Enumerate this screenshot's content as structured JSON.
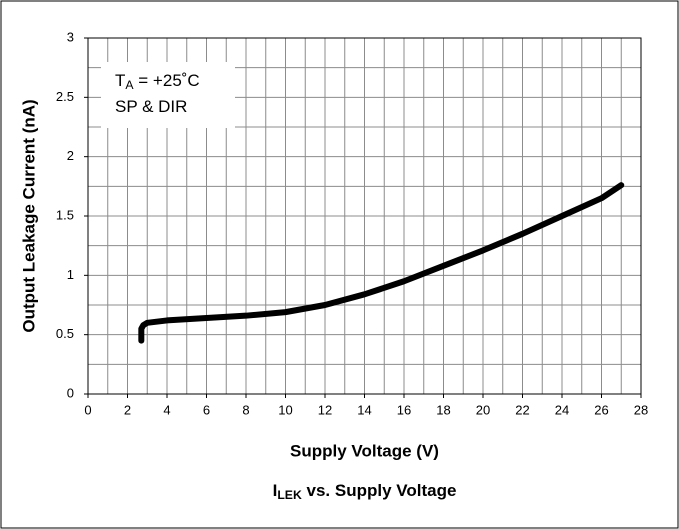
{
  "chart_data": {
    "type": "line",
    "title": {
      "main": "I",
      "subscript": "LEK",
      "rest": " vs. Supply Voltage"
    },
    "xlabel": "Supply Voltage (V)",
    "ylabel": "Output Leakage Current (nA)",
    "annotations": [
      {
        "main": "T",
        "subscript": "A",
        "rest": " = +25˚C"
      },
      {
        "main": "SP & DIR"
      }
    ],
    "series": [
      {
        "color": "#000000",
        "x": [
          2.7,
          2.7,
          2.8,
          3,
          4,
          6,
          8,
          10,
          12,
          14,
          16,
          18,
          20,
          22,
          24,
          26,
          27
        ],
        "values": [
          0.45,
          0.55,
          0.58,
          0.6,
          0.62,
          0.64,
          0.66,
          0.69,
          0.75,
          0.84,
          0.95,
          1.08,
          1.21,
          1.35,
          1.5,
          1.65,
          1.76
        ]
      }
    ],
    "xlim": [
      0,
      28
    ],
    "xticks": [
      0,
      2,
      4,
      6,
      8,
      10,
      12,
      14,
      16,
      18,
      20,
      22,
      24,
      26,
      28
    ],
    "ylim": [
      0,
      3
    ],
    "yticks": [
      0,
      0.5,
      1,
      1.5,
      2,
      2.5,
      3
    ],
    "grid": true
  }
}
